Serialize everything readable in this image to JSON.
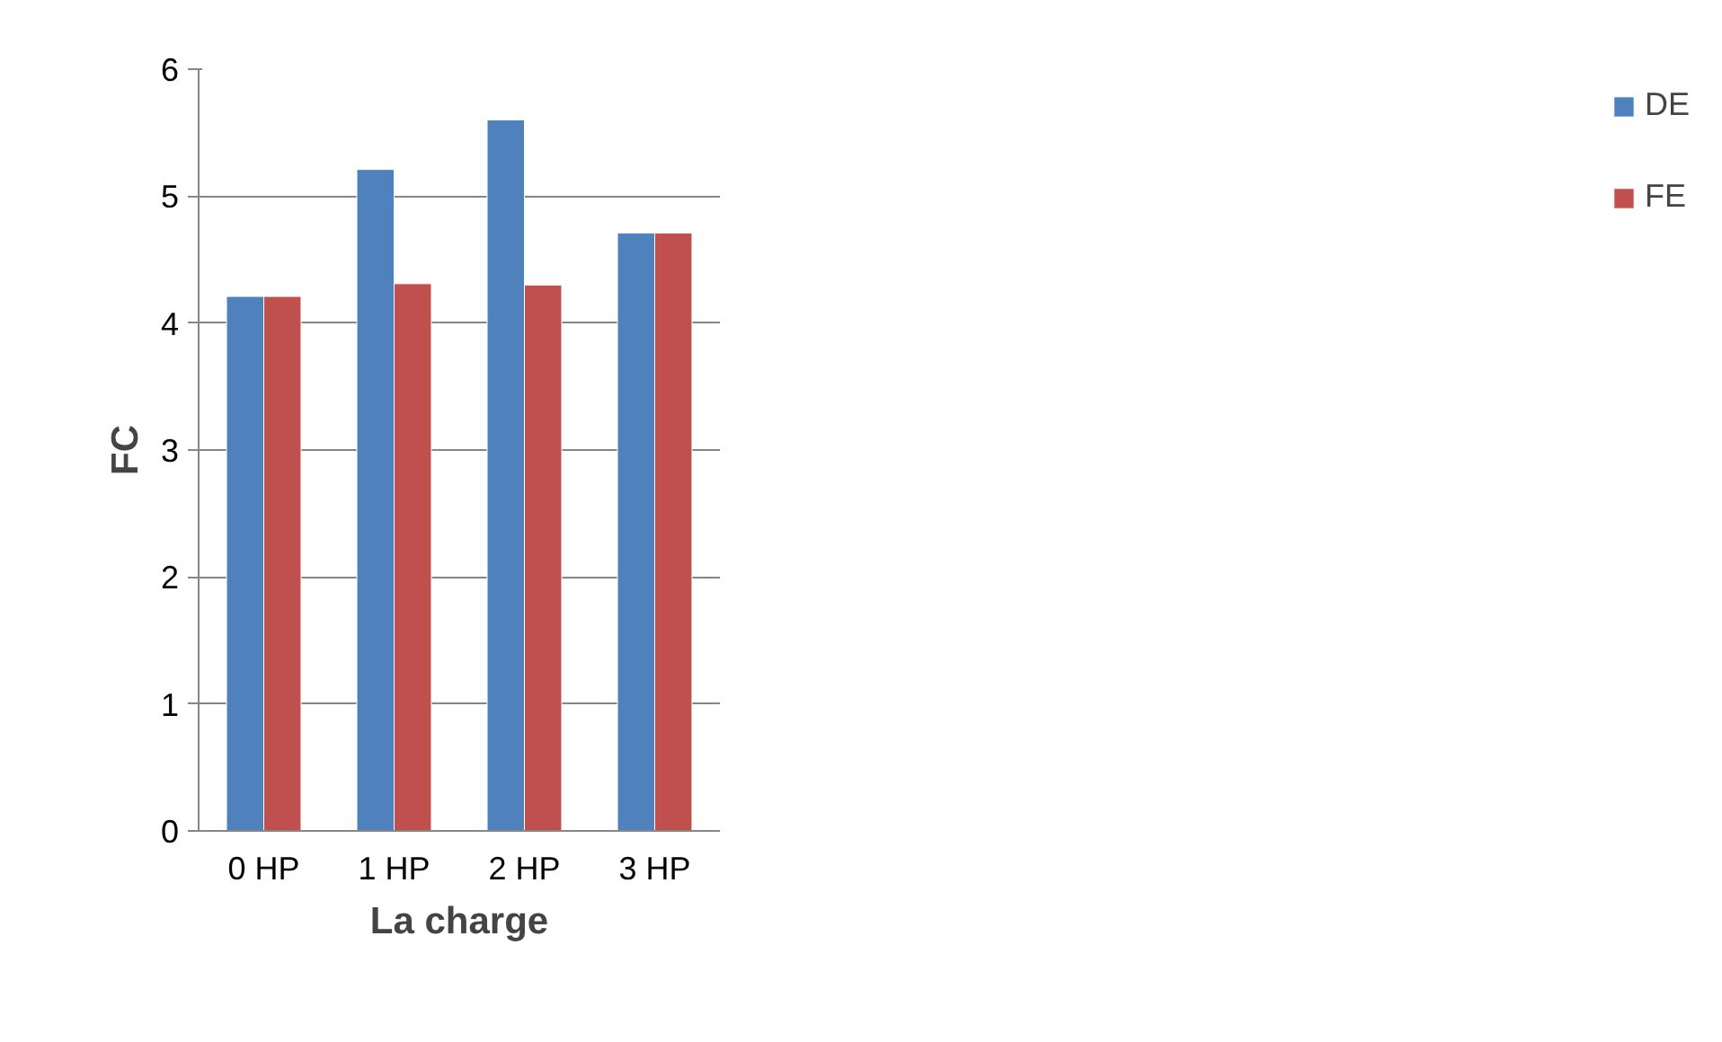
{
  "chart_data": {
    "type": "bar",
    "xlabel": "La charge",
    "ylabel": "FC",
    "categories": [
      "0 HP",
      "1 HP",
      "2 HP",
      "3 HP"
    ],
    "series": [
      {
        "name": "DE",
        "color": "#4f81bd",
        "values": [
          4.21,
          5.21,
          5.6,
          4.71
        ]
      },
      {
        "name": "FE",
        "color": "#c0504d",
        "values": [
          4.21,
          4.31,
          4.3,
          4.71
        ]
      }
    ],
    "ylim": [
      0,
      6
    ],
    "yticks": [
      0,
      1,
      2,
      3,
      4,
      5,
      6
    ],
    "grid": "y",
    "legend": "right"
  }
}
